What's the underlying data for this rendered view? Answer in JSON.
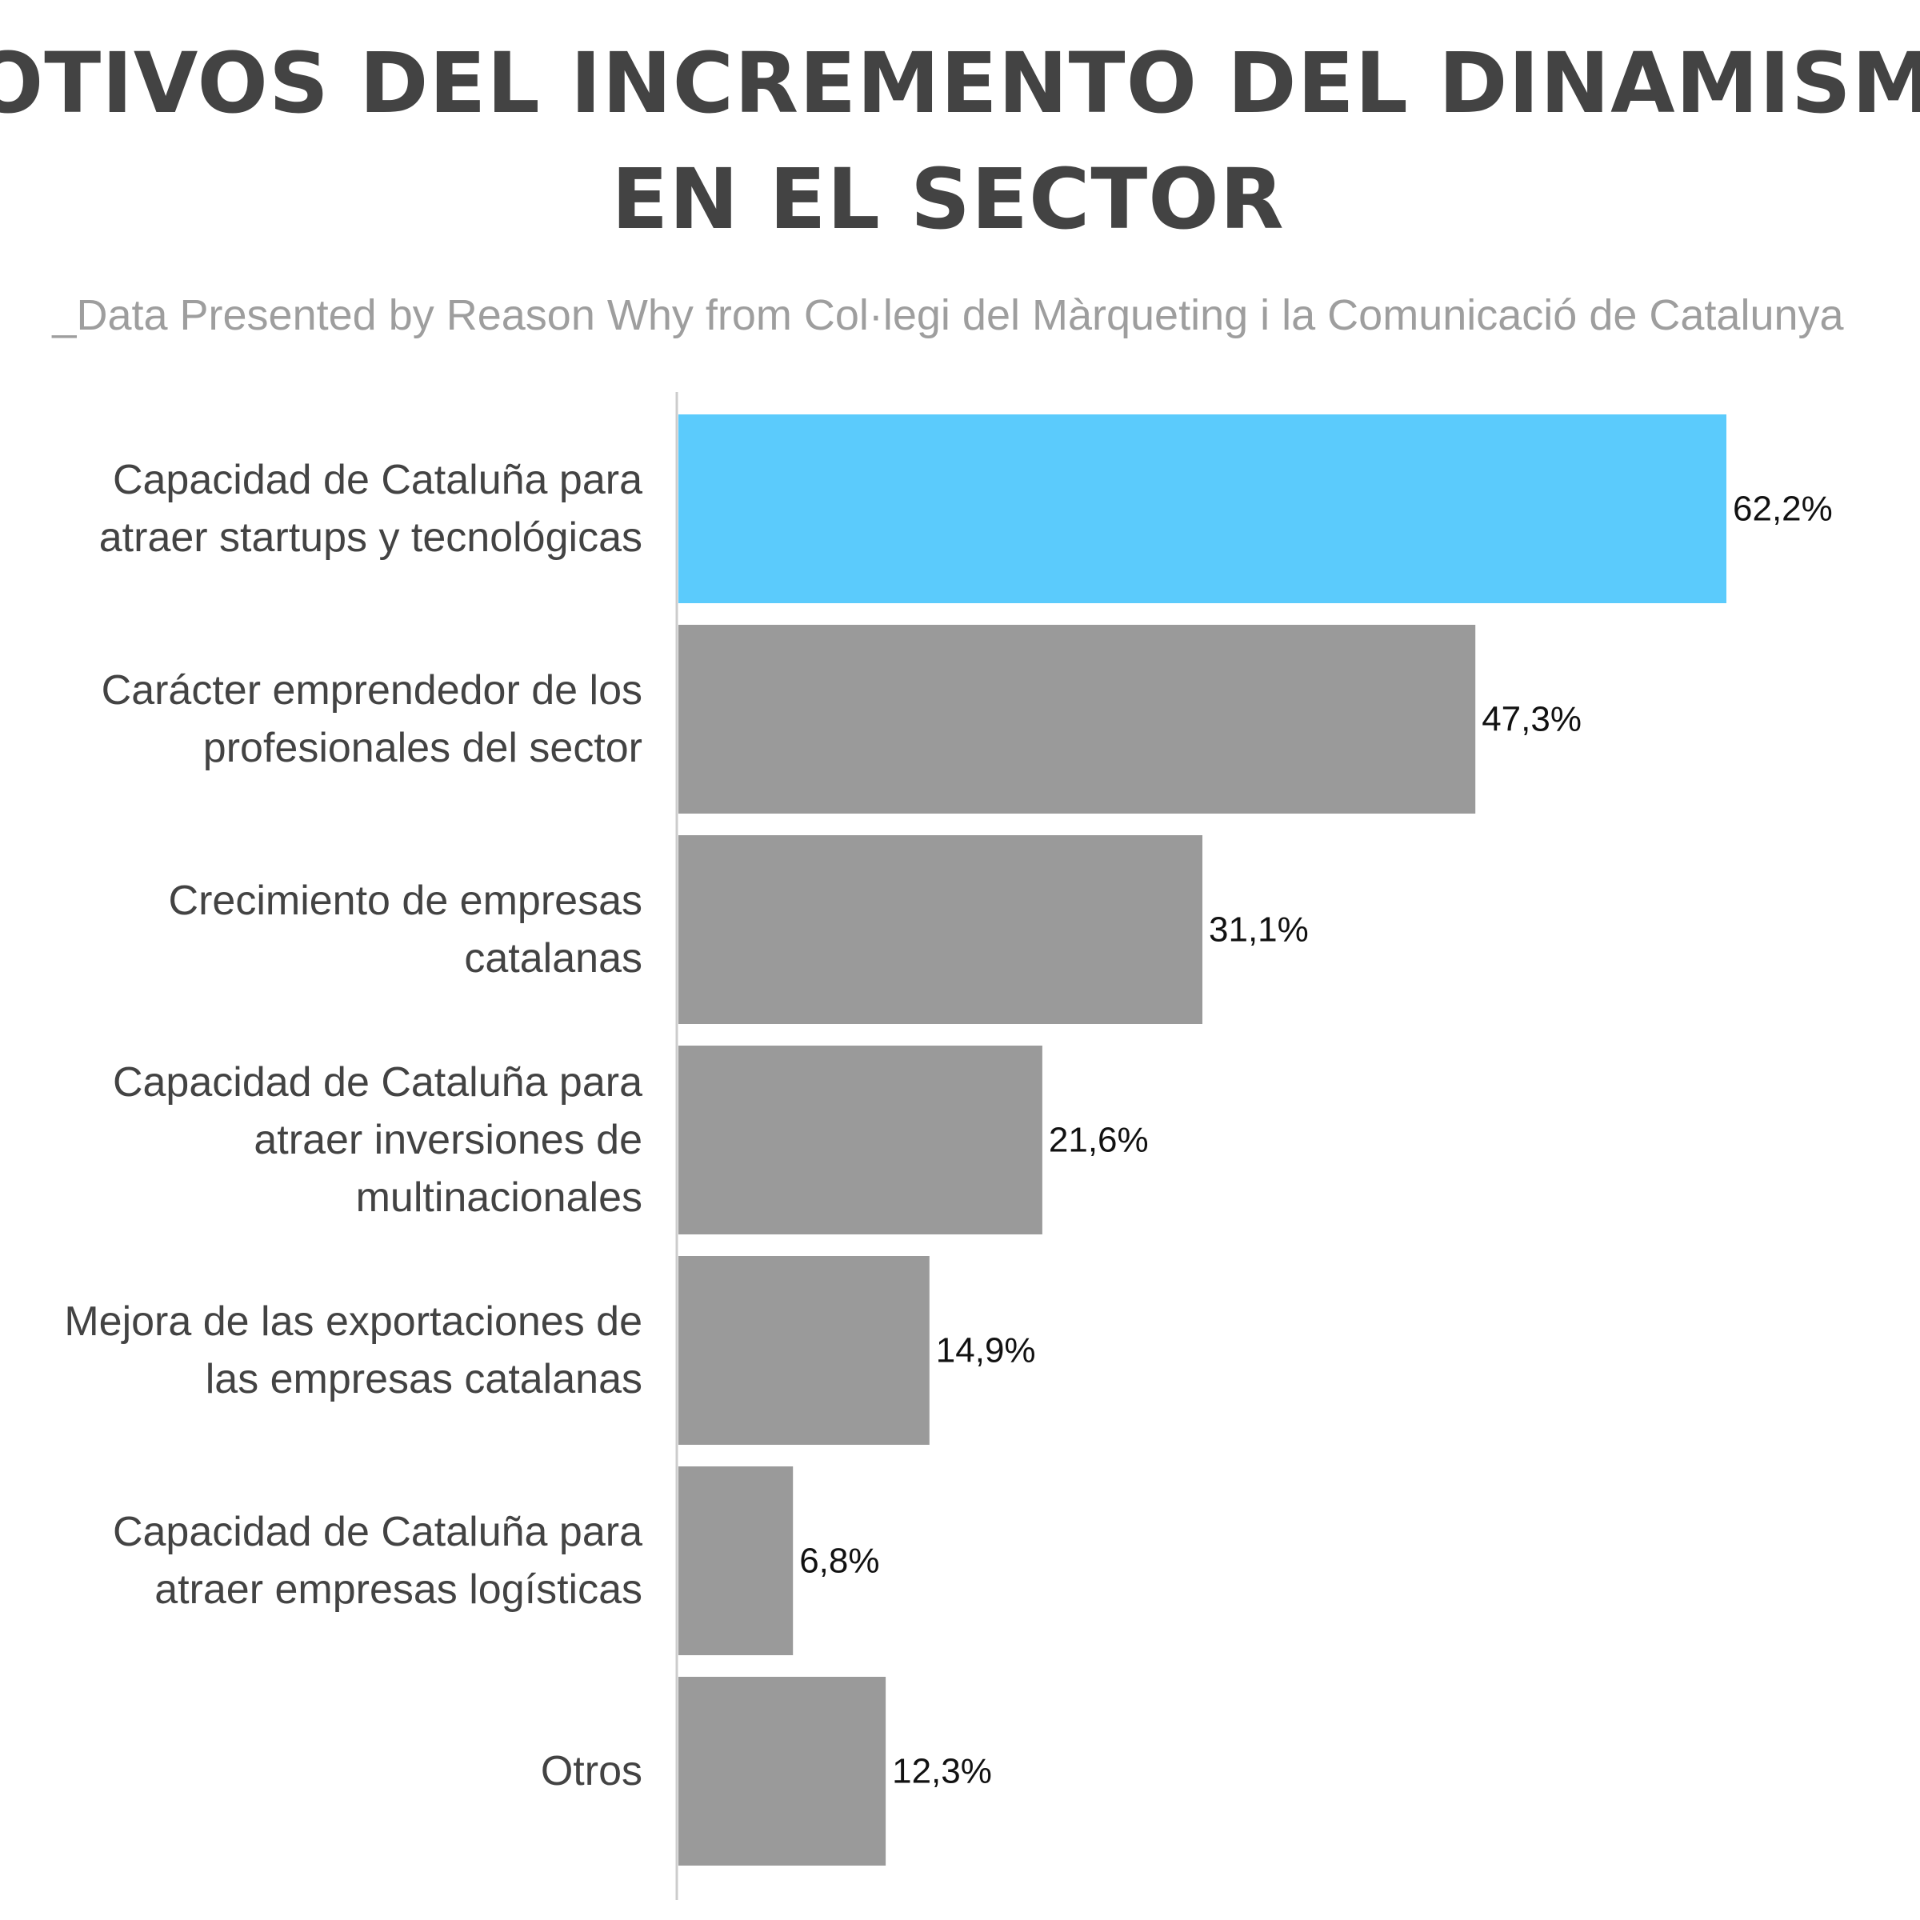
{
  "chart_data": {
    "type": "bar",
    "orientation": "horizontal",
    "title_lines": [
      "MOTIVOS DEL INCREMENTO DEL DINAMISMO",
      "EN EL SECTOR"
    ],
    "subtitle": "_Data Presented by Reason Why from Col·legi del Màrqueting i la Comunicació de Catalunya",
    "categories": [
      [
        "Capacidad de Cataluña para",
        "atraer startups y tecnológicas"
      ],
      [
        "Carácter emprendedor de los",
        "profesionales del sector"
      ],
      [
        "Crecimiento de empresas",
        "catalanas"
      ],
      [
        "Capacidad de Cataluña para",
        "atraer inversiones de",
        "multinacionales"
      ],
      [
        "Mejora de las exportaciones de",
        "las empresas catalanas"
      ],
      [
        "Capacidad de Cataluña para",
        "atraer empresas logísticas"
      ],
      [
        "Otros"
      ]
    ],
    "values": [
      62.2,
      47.3,
      31.1,
      21.6,
      14.9,
      6.8,
      12.3
    ],
    "value_labels": [
      "62,2%",
      "47,3%",
      "31,1%",
      "21,6%",
      "14,9%",
      "6,8%",
      "12,3%"
    ],
    "unit": "%",
    "xlim": [
      0,
      62.2
    ],
    "grid": false,
    "legend": "none",
    "colors": {
      "highlight": "#5bcbfc",
      "default": "#9a9a9a",
      "axis": "#cccccc",
      "title": "#434343",
      "subtitle": "#9e9e9e"
    },
    "highlight_index": 0
  }
}
